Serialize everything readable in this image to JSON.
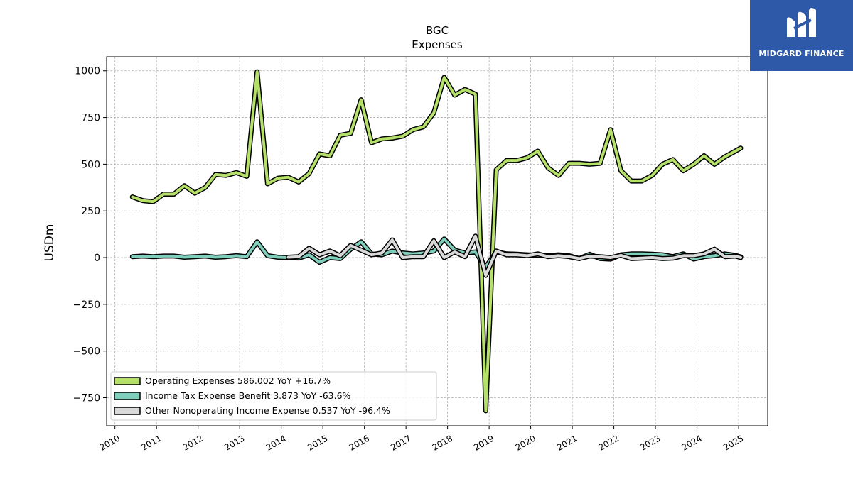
{
  "logo": {
    "text": "MIDGARD FINANCE"
  },
  "chart_data": {
    "type": "line",
    "title": "BGC",
    "subtitle": "Expenses",
    "xlabel": "",
    "ylabel": "USDm",
    "xlim": [
      2009.8,
      2025.7
    ],
    "ylim": [
      -900,
      1075
    ],
    "yticks": [
      1000,
      750,
      500,
      250,
      0,
      -250,
      -500,
      -750
    ],
    "ytick_labels": [
      "1000",
      "750",
      "500",
      "250",
      "0",
      "−250",
      "−500",
      "−750"
    ],
    "xticks": [
      2010,
      2011,
      2012,
      2013,
      2014,
      2015,
      2016,
      2017,
      2018,
      2019,
      2020,
      2021,
      2022,
      2023,
      2024,
      2025
    ],
    "xtick_labels": [
      "2010",
      "2011",
      "2012",
      "2013",
      "2014",
      "2015",
      "2016",
      "2017",
      "2018",
      "2019",
      "2020",
      "2021",
      "2022",
      "2023",
      "2024",
      "2025"
    ],
    "grid": true,
    "legend_position": "lower-left",
    "series": [
      {
        "name": "Operating Expenses",
        "legend_label": "Operating Expenses  586.002 YoY +16.7%",
        "color": "#b5e06a",
        "x": [
          2010.42,
          2010.67,
          2010.92,
          2011.17,
          2011.42,
          2011.67,
          2011.92,
          2012.17,
          2012.42,
          2012.67,
          2012.92,
          2013.17,
          2013.42,
          2013.67,
          2013.92,
          2014.17,
          2014.42,
          2014.67,
          2014.92,
          2015.17,
          2015.42,
          2015.67,
          2015.92,
          2016.17,
          2016.42,
          2016.67,
          2016.92,
          2017.17,
          2017.42,
          2017.67,
          2017.92,
          2018.17,
          2018.42,
          2018.67,
          2018.92,
          2019.17,
          2019.42,
          2019.67,
          2019.92,
          2020.17,
          2020.42,
          2020.67,
          2020.92,
          2021.17,
          2021.42,
          2021.67,
          2021.92,
          2022.17,
          2022.42,
          2022.67,
          2022.92,
          2023.17,
          2023.42,
          2023.67,
          2023.92,
          2024.17,
          2024.42,
          2024.67,
          2024.92,
          2025.05
        ],
        "values": [
          325,
          305,
          300,
          340,
          340,
          385,
          345,
          375,
          445,
          440,
          455,
          435,
          995,
          395,
          425,
          430,
          405,
          450,
          555,
          545,
          655,
          665,
          845,
          615,
          635,
          640,
          650,
          685,
          700,
          775,
          965,
          870,
          900,
          875,
          -820,
          470,
          520,
          520,
          535,
          570,
          480,
          440,
          505,
          505,
          500,
          505,
          685,
          465,
          410,
          410,
          440,
          500,
          525,
          465,
          500,
          545,
          500,
          540,
          570,
          586
        ]
      },
      {
        "name": "Income Tax Expense Benefit",
        "legend_label": "Income Tax Expense Benefit  3.873 YoY -63.6%",
        "color": "#7fcdbb",
        "x": [
          2010.42,
          2010.67,
          2010.92,
          2011.17,
          2011.42,
          2011.67,
          2011.92,
          2012.17,
          2012.42,
          2012.67,
          2012.92,
          2013.17,
          2013.42,
          2013.67,
          2013.92,
          2014.17,
          2014.42,
          2014.67,
          2014.92,
          2015.17,
          2015.42,
          2015.67,
          2015.92,
          2016.17,
          2016.42,
          2016.67,
          2016.92,
          2017.17,
          2017.42,
          2017.67,
          2017.92,
          2018.17,
          2018.42,
          2018.67,
          2018.92,
          2019.17,
          2019.42,
          2019.67,
          2019.92,
          2020.17,
          2020.42,
          2020.67,
          2020.92,
          2021.17,
          2021.42,
          2021.67,
          2021.92,
          2022.17,
          2022.42,
          2022.67,
          2022.92,
          2023.17,
          2023.42,
          2023.67,
          2023.92,
          2024.17,
          2024.42,
          2024.67,
          2024.92,
          2025.05
        ],
        "values": [
          5,
          8,
          5,
          8,
          8,
          2,
          5,
          8,
          2,
          5,
          10,
          5,
          85,
          10,
          2,
          0,
          -2,
          15,
          -25,
          0,
          -5,
          45,
          85,
          20,
          15,
          35,
          25,
          20,
          25,
          35,
          100,
          40,
          25,
          30,
          -50,
          30,
          20,
          18,
          15,
          12,
          10,
          15,
          10,
          -5,
          18,
          -5,
          -8,
          15,
          20,
          20,
          18,
          15,
          5,
          20,
          -8,
          5,
          10,
          20,
          12,
          3.873
        ]
      },
      {
        "name": "Other Nonoperating Income Expense",
        "legend_label": "Other Nonoperating Income Expense  0.537 YoY -96.4%",
        "color": "#d9d9d9",
        "x": [
          2014.17,
          2014.42,
          2014.67,
          2014.92,
          2015.17,
          2015.42,
          2015.67,
          2015.92,
          2016.17,
          2016.42,
          2016.67,
          2016.92,
          2017.17,
          2017.42,
          2017.67,
          2017.92,
          2018.17,
          2018.42,
          2018.67,
          2018.92,
          2019.17,
          2019.42,
          2019.67,
          2019.92,
          2020.17,
          2020.42,
          2020.67,
          2020.92,
          2021.17,
          2021.42,
          2021.67,
          2021.92,
          2022.17,
          2022.42,
          2022.67,
          2022.92,
          2023.17,
          2023.42,
          2023.67,
          2023.92,
          2024.17,
          2024.42,
          2024.67,
          2024.92,
          2025.05
        ],
        "values": [
          2,
          5,
          50,
          15,
          35,
          10,
          65,
          40,
          15,
          25,
          95,
          0,
          5,
          5,
          90,
          0,
          30,
          5,
          115,
          -95,
          35,
          15,
          15,
          10,
          20,
          5,
          10,
          5,
          -5,
          8,
          5,
          0,
          12,
          -5,
          -3,
          0,
          -5,
          -3,
          10,
          10,
          20,
          45,
          5,
          8,
          0.537
        ]
      }
    ]
  }
}
